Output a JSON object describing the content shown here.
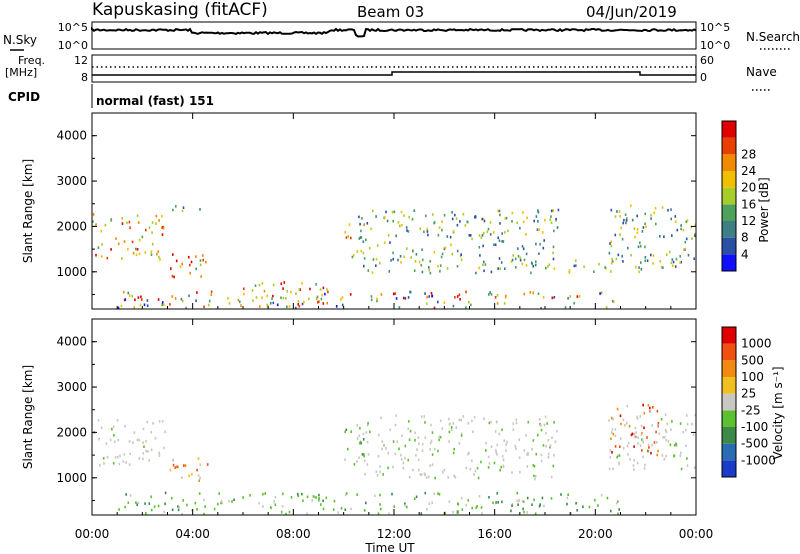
{
  "header": {
    "title": "Kapuskasing (fitACF)",
    "beam": "Beam 03",
    "date": "04/Jun/2019"
  },
  "top_panels": {
    "nsky_label": "N.Sky",
    "nsky_ticks": [
      "10^5",
      "10^0"
    ],
    "nsearch_label": "N.Search",
    "nsearch_ticks": [
      "10^5",
      "10^0"
    ],
    "freq_label": "Freq.",
    "freq_unit": "[MHz]",
    "freq_ticks": [
      "12",
      "8"
    ],
    "nave_label": "Nave",
    "nave_ticks": [
      "60",
      "0"
    ],
    "cpid_label": "CPID",
    "cpid_value": "normal (fast) 151"
  },
  "chart_data": [
    {
      "type": "heatmap",
      "name": "power",
      "ylabel": "Slant Range [km]",
      "y_ticks": [
        "1000",
        "2000",
        "3000",
        "4000"
      ],
      "ylim": [
        180,
        4500
      ],
      "xlim_hours": [
        0,
        24
      ],
      "colorbar": {
        "label": "Power [dB]",
        "ticks": [
          "4",
          "8",
          "12",
          "16",
          "20",
          "24",
          "28"
        ],
        "colors": [
          "#1010ff",
          "#2c4fa6",
          "#3e7f86",
          "#4ea05a",
          "#a8cc2a",
          "#f0c000",
          "#f08a00",
          "#e84000",
          "#e00000"
        ]
      },
      "echo_regions": [
        {
          "t": [
            0.0,
            2.9
          ],
          "r": [
            1300,
            2300
          ],
          "level": "high"
        },
        {
          "t": [
            2.9,
            4.6
          ],
          "r": [
            900,
            1500
          ],
          "level": "high"
        },
        {
          "t": [
            3.0,
            4.5
          ],
          "r": [
            2350,
            2550
          ],
          "level": "mid"
        },
        {
          "t": [
            1.0,
            21.0
          ],
          "r": [
            180,
            600
          ],
          "level": "mixed"
        },
        {
          "t": [
            6.0,
            9.5
          ],
          "r": [
            250,
            800
          ],
          "level": "high"
        },
        {
          "t": [
            10.0,
            10.8
          ],
          "r": [
            1300,
            2200
          ],
          "level": "high"
        },
        {
          "t": [
            10.5,
            18.5
          ],
          "r": [
            1000,
            2400
          ],
          "level": "mid"
        },
        {
          "t": [
            15.5,
            23.5
          ],
          "r": [
            1000,
            1300
          ],
          "level": "mid"
        },
        {
          "t": [
            20.5,
            24.0
          ],
          "r": [
            1200,
            2500
          ],
          "level": "mid"
        }
      ]
    },
    {
      "type": "heatmap",
      "name": "velocity",
      "ylabel": "Slant Range [km]",
      "y_ticks": [
        "1000",
        "2000",
        "3000",
        "4000"
      ],
      "ylim": [
        180,
        4500
      ],
      "xlim_hours": [
        0,
        24
      ],
      "x_ticks": [
        "00:00",
        "04:00",
        "08:00",
        "12:00",
        "16:00",
        "20:00",
        "00:00"
      ],
      "xlabel": "Time UT",
      "colorbar": {
        "label": "Velocity [m s⁻¹]",
        "ticks": [
          "1000",
          "500",
          "100",
          "25",
          "-25",
          "-100",
          "-500",
          "-1000"
        ],
        "colors": [
          "#1a3cc8",
          "#2a6cb4",
          "#3d8a48",
          "#5cc030",
          "#c8c8c0",
          "#f0c020",
          "#f08a10",
          "#f05010",
          "#e00000"
        ]
      },
      "echo_regions": [
        {
          "t": [
            0.0,
            2.9
          ],
          "r": [
            1300,
            2300
          ],
          "level": "gray"
        },
        {
          "t": [
            2.9,
            4.6
          ],
          "r": [
            900,
            1500
          ],
          "level": "orange"
        },
        {
          "t": [
            1.0,
            21.0
          ],
          "r": [
            180,
            700
          ],
          "level": "green"
        },
        {
          "t": [
            10.0,
            10.8
          ],
          "r": [
            1300,
            2200
          ],
          "level": "green"
        },
        {
          "t": [
            10.5,
            18.5
          ],
          "r": [
            1000,
            2400
          ],
          "level": "gray"
        },
        {
          "t": [
            20.5,
            22.5
          ],
          "r": [
            1500,
            2700
          ],
          "level": "red"
        },
        {
          "t": [
            20.5,
            24.0
          ],
          "r": [
            1200,
            2500
          ],
          "level": "gray"
        }
      ]
    }
  ]
}
